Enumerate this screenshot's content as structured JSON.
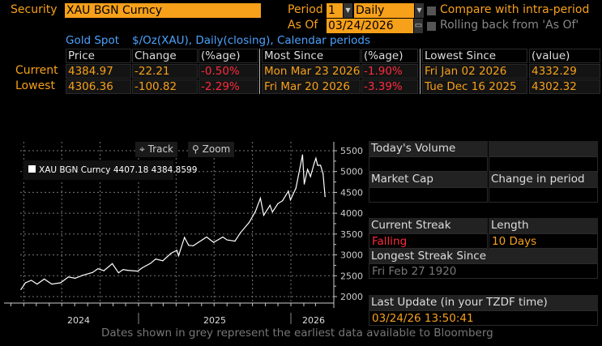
{
  "header": {
    "security_label": "Security",
    "security_value": "XAU BGN Curncy",
    "period_label": "Period",
    "period_count": "1",
    "period_unit": "Daily",
    "compare_label": "Compare with intra-period",
    "asof_label": "As Of",
    "asof_value": "03/24/2026",
    "rolling_label": "Rolling back from 'As Of'"
  },
  "subtitle": {
    "name": "Gold Spot",
    "desc": "$/Oz(XAU), Daily(closing), Calendar periods"
  },
  "table": {
    "headers": [
      "Price",
      "Change",
      "(%age)",
      "Most Since",
      "(%age)",
      "Lowest Since",
      "(value)"
    ],
    "rows": [
      {
        "label": "Current",
        "cells": [
          "4384.97",
          "-22.21",
          "-0.50%",
          "Mon Mar 23 2026",
          "-1.90%",
          "Fri Jan 02 2026",
          "4332.29"
        ]
      },
      {
        "label": "Lowest",
        "cells": [
          "4306.36",
          "-100.82",
          "-2.29%",
          "Fri Mar 20 2026",
          "-3.39%",
          "Tue Dec 16 2025",
          "4302.32"
        ]
      }
    ]
  },
  "chart": {
    "track_label": "Track",
    "zoom_label": "Zoom",
    "legend": "XAU BGN Curncy 4407.18  4384.8599"
  },
  "chart_data": {
    "type": "line",
    "series": [
      {
        "name": "XAU BGN Curncy",
        "color": "#ffffff",
        "points": [
          [
            "2024-03-25",
            2170
          ],
          [
            "2024-04-05",
            2330
          ],
          [
            "2024-04-19",
            2390
          ],
          [
            "2024-05-03",
            2300
          ],
          [
            "2024-05-20",
            2420
          ],
          [
            "2024-06-07",
            2300
          ],
          [
            "2024-06-28",
            2330
          ],
          [
            "2024-07-17",
            2470
          ],
          [
            "2024-08-02",
            2440
          ],
          [
            "2024-08-20",
            2510
          ],
          [
            "2024-09-13",
            2580
          ],
          [
            "2024-09-26",
            2670
          ],
          [
            "2024-10-10",
            2620
          ],
          [
            "2024-10-30",
            2790
          ],
          [
            "2024-11-14",
            2570
          ],
          [
            "2024-11-25",
            2650
          ],
          [
            "2024-12-06",
            2630
          ],
          [
            "2024-12-30",
            2610
          ],
          [
            "2025-01-10",
            2690
          ],
          [
            "2025-01-30",
            2800
          ],
          [
            "2025-02-11",
            2900
          ],
          [
            "2025-02-28",
            2860
          ],
          [
            "2025-03-20",
            3040
          ],
          [
            "2025-04-03",
            3110
          ],
          [
            "2025-04-07",
            2980
          ],
          [
            "2025-04-21",
            3420
          ],
          [
            "2025-05-01",
            3230
          ],
          [
            "2025-05-12",
            3220
          ],
          [
            "2025-06-13",
            3430
          ],
          [
            "2025-06-30",
            3300
          ],
          [
            "2025-07-22",
            3430
          ],
          [
            "2025-08-01",
            3360
          ],
          [
            "2025-08-20",
            3330
          ],
          [
            "2025-09-02",
            3530
          ],
          [
            "2025-09-23",
            3780
          ],
          [
            "2025-10-08",
            4040
          ],
          [
            "2025-10-20",
            4360
          ],
          [
            "2025-10-28",
            3950
          ],
          [
            "2025-11-12",
            4190
          ],
          [
            "2025-11-18",
            4030
          ],
          [
            "2025-12-01",
            4230
          ],
          [
            "2025-12-12",
            4300
          ],
          [
            "2025-12-26",
            4530
          ],
          [
            "2025-12-31",
            4320
          ],
          [
            "2026-01-13",
            4600
          ],
          [
            "2026-01-29",
            5400
          ],
          [
            "2026-02-02",
            4700
          ],
          [
            "2026-02-10",
            5050
          ],
          [
            "2026-02-17",
            4880
          ],
          [
            "2026-02-26",
            5200
          ],
          [
            "2026-03-02",
            5320
          ],
          [
            "2026-03-06",
            5150
          ],
          [
            "2026-03-13",
            5150
          ],
          [
            "2026-03-19",
            4950
          ],
          [
            "2026-03-24",
            4400
          ]
        ]
      }
    ],
    "x_tick_labels": [
      "2024",
      "2025",
      "2026"
    ],
    "y_ticks": [
      2000,
      2500,
      3000,
      3500,
      4000,
      4500,
      5000,
      5500
    ],
    "ylim": [
      1950,
      5650
    ],
    "grid": true,
    "legend": "top-left"
  },
  "panel": {
    "volume_label": "Today's Volume",
    "mcap_label": "Market Cap",
    "change_label": "Change in period",
    "streak_label": "Current Streak",
    "length_label": "Length",
    "streak_value": "Falling",
    "length_value": "10 Days",
    "longest_label": "Longest Streak Since",
    "longest_value": "Fri Feb 27 1920",
    "update_label": "Last Update (in your TZDF time)",
    "update_value": "03/24/26 13:50:41"
  },
  "footer": "Dates shown in grey represent the earliest data available to Bloomberg",
  "colors": {
    "orange": "#f7a01a",
    "red": "#ff2b3c",
    "blue": "#4aa3ff"
  }
}
